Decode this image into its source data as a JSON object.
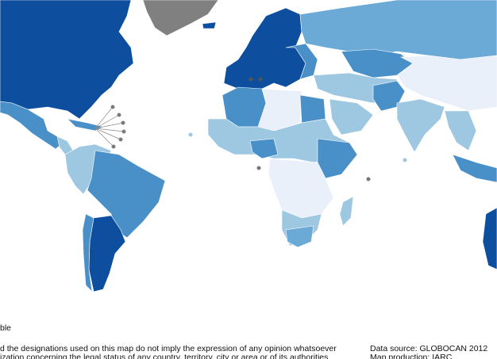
{
  "legend": {
    "not_applicable": "ble"
  },
  "footer": {
    "disclaimer": [
      "d the designations used on this map do not imply the expression of any opinion whatsoever",
      "ization concerning the legal status of any country, territory, city or area or of its authorities"
    ],
    "source": "Data source: GLOBOCAN 2012",
    "production": "Map production: IARC"
  }
}
